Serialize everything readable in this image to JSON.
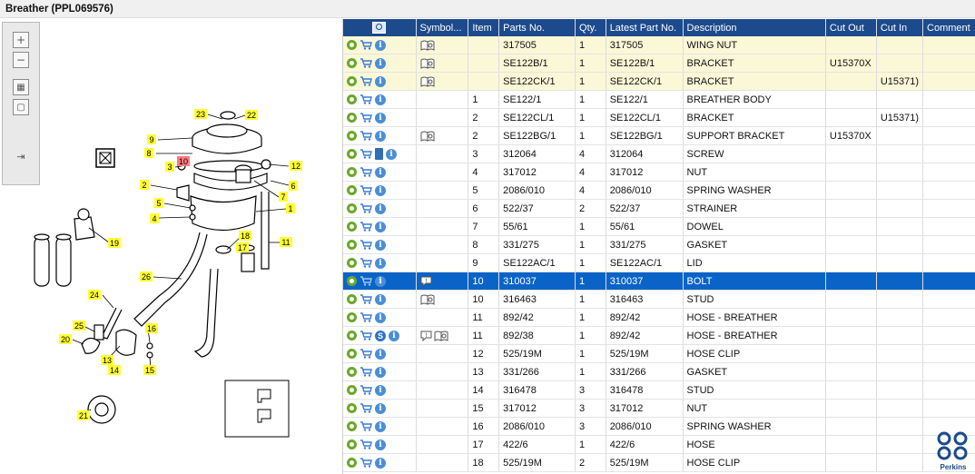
{
  "window": {
    "title": "Breather (PPL069576)"
  },
  "toolbar": {
    "buttons": [
      "zoom-in",
      "zoom-out",
      "fit-all",
      "fit-page",
      "export"
    ]
  },
  "diagram": {
    "callouts": [
      "23",
      "22",
      "9",
      "8",
      "3",
      "10",
      "12",
      "6",
      "2",
      "7",
      "5",
      "1",
      "4",
      "19",
      "18",
      "17",
      "11",
      "26",
      "24",
      "16",
      "25",
      "13",
      "20",
      "14",
      "15",
      "21"
    ],
    "selected_callout": "10"
  },
  "grid": {
    "columns": [
      "",
      "Symbol...",
      "Item",
      "Parts No.",
      "Qty.",
      "Latest Part No.",
      "Description",
      "Cut Out",
      "Cut In",
      "Comment"
    ],
    "rows": [
      {
        "item": "",
        "part": "317505",
        "qty": "1",
        "latest": "317505",
        "desc": "WING NUT",
        "cutout": "",
        "cutin": "",
        "comment": "",
        "sym": "book",
        "hl": true,
        "s": false
      },
      {
        "item": "",
        "part": "SE122B/1",
        "qty": "1",
        "latest": "SE122B/1",
        "desc": "BRACKET",
        "cutout": "U15370X",
        "cutin": "",
        "comment": "",
        "sym": "book",
        "hl": true,
        "s": false
      },
      {
        "item": "",
        "part": "SE122CK/1",
        "qty": "1",
        "latest": "SE122CK/1",
        "desc": "BRACKET",
        "cutout": "",
        "cutin": "U15371)",
        "comment": "",
        "sym": "book",
        "hl": true,
        "s": false
      },
      {
        "item": "1",
        "part": "SE122/1",
        "qty": "1",
        "latest": "SE122/1",
        "desc": "BREATHER BODY",
        "cutout": "",
        "cutin": "",
        "comment": "",
        "sym": "",
        "hl": false,
        "s": false
      },
      {
        "item": "2",
        "part": "SE122CL/1",
        "qty": "1",
        "latest": "SE122CL/1",
        "desc": "BRACKET",
        "cutout": "",
        "cutin": "U15371)",
        "comment": "",
        "sym": "",
        "hl": false,
        "s": false
      },
      {
        "item": "2",
        "part": "SE122BG/1",
        "qty": "1",
        "latest": "SE122BG/1",
        "desc": "SUPPORT BRACKET",
        "cutout": "U15370X",
        "cutin": "",
        "comment": "",
        "sym": "book",
        "hl": false,
        "s": false
      },
      {
        "item": "3",
        "part": "312064",
        "qty": "4",
        "latest": "312064",
        "desc": "SCREW",
        "cutout": "",
        "cutin": "",
        "comment": "",
        "sym": "",
        "hl": false,
        "s": false,
        "bookicon": true
      },
      {
        "item": "4",
        "part": "317012",
        "qty": "4",
        "latest": "317012",
        "desc": "NUT",
        "cutout": "",
        "cutin": "",
        "comment": "",
        "sym": "",
        "hl": false,
        "s": false
      },
      {
        "item": "5",
        "part": "2086/010",
        "qty": "4",
        "latest": "2086/010",
        "desc": "SPRING WASHER",
        "cutout": "",
        "cutin": "",
        "comment": "",
        "sym": "",
        "hl": false,
        "s": false
      },
      {
        "item": "6",
        "part": "522/37",
        "qty": "2",
        "latest": "522/37",
        "desc": "STRAINER",
        "cutout": "",
        "cutin": "",
        "comment": "",
        "sym": "",
        "hl": false,
        "s": false
      },
      {
        "item": "7",
        "part": "55/61",
        "qty": "1",
        "latest": "55/61",
        "desc": "DOWEL",
        "cutout": "",
        "cutin": "",
        "comment": "",
        "sym": "",
        "hl": false,
        "s": false
      },
      {
        "item": "8",
        "part": "331/275",
        "qty": "1",
        "latest": "331/275",
        "desc": "GASKET",
        "cutout": "",
        "cutin": "",
        "comment": "",
        "sym": "",
        "hl": false,
        "s": false
      },
      {
        "item": "9",
        "part": "SE122AC/1",
        "qty": "1",
        "latest": "SE122AC/1",
        "desc": "LID",
        "cutout": "",
        "cutin": "",
        "comment": "",
        "sym": "",
        "hl": false,
        "s": false
      },
      {
        "item": "10",
        "part": "310037",
        "qty": "1",
        "latest": "310037",
        "desc": "BOLT",
        "cutout": "",
        "cutin": "",
        "comment": "",
        "sym": "note",
        "hl": false,
        "s": false,
        "sel": true
      },
      {
        "item": "10",
        "part": "316463",
        "qty": "1",
        "latest": "316463",
        "desc": "STUD",
        "cutout": "",
        "cutin": "",
        "comment": "",
        "sym": "book",
        "hl": false,
        "s": false
      },
      {
        "item": "11",
        "part": "892/42",
        "qty": "1",
        "latest": "892/42",
        "desc": "HOSE - BREATHER",
        "cutout": "",
        "cutin": "",
        "comment": "",
        "sym": "",
        "hl": false,
        "s": false
      },
      {
        "item": "11",
        "part": "892/38",
        "qty": "1",
        "latest": "892/42",
        "desc": "HOSE - BREATHER",
        "cutout": "",
        "cutin": "",
        "comment": "",
        "sym": "notebook",
        "hl": false,
        "s": true
      },
      {
        "item": "12",
        "part": "525/19M",
        "qty": "1",
        "latest": "525/19M",
        "desc": "HOSE CLIP",
        "cutout": "",
        "cutin": "",
        "comment": "",
        "sym": "",
        "hl": false,
        "s": false
      },
      {
        "item": "13",
        "part": "331/266",
        "qty": "1",
        "latest": "331/266",
        "desc": "GASKET",
        "cutout": "",
        "cutin": "",
        "comment": "",
        "sym": "",
        "hl": false,
        "s": false
      },
      {
        "item": "14",
        "part": "316478",
        "qty": "3",
        "latest": "316478",
        "desc": "STUD",
        "cutout": "",
        "cutin": "",
        "comment": "",
        "sym": "",
        "hl": false,
        "s": false
      },
      {
        "item": "15",
        "part": "317012",
        "qty": "3",
        "latest": "317012",
        "desc": "NUT",
        "cutout": "",
        "cutin": "",
        "comment": "",
        "sym": "",
        "hl": false,
        "s": false
      },
      {
        "item": "16",
        "part": "2086/010",
        "qty": "3",
        "latest": "2086/010",
        "desc": "SPRING WASHER",
        "cutout": "",
        "cutin": "",
        "comment": "",
        "sym": "",
        "hl": false,
        "s": false
      },
      {
        "item": "17",
        "part": "422/6",
        "qty": "1",
        "latest": "422/6",
        "desc": "HOSE",
        "cutout": "",
        "cutin": "",
        "comment": "",
        "sym": "",
        "hl": false,
        "s": false
      },
      {
        "item": "18",
        "part": "525/19M",
        "qty": "2",
        "latest": "525/19M",
        "desc": "HOSE CLIP",
        "cutout": "",
        "cutin": "",
        "comment": "",
        "sym": "",
        "hl": false,
        "s": false
      }
    ]
  },
  "colors": {
    "header": "#1c4a8c",
    "selected": "#0a64c8",
    "highlight": "#fbf8d8",
    "callout": "#ffff33",
    "callout_selected": "#ff7b7b",
    "logo": "#1c4a8c"
  },
  "logo": {
    "text": "Perkins"
  }
}
